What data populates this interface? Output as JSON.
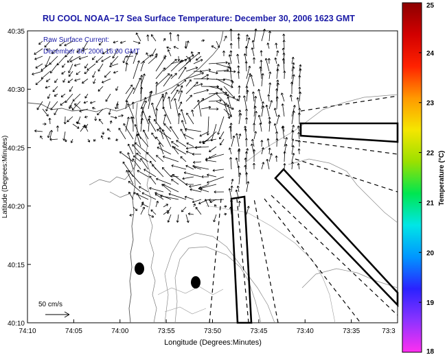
{
  "title": "RU COOL  NOAA−17  Sea Surface Temperature:  December 30, 2006 1623 GMT",
  "overlay": {
    "line1": "Raw Surface Current:",
    "line2": "December 30, 2006 16:00 GMT"
  },
  "scale_arrow_label": "50 cm/s",
  "axes": {
    "xlabel": "Longitude (Degrees:Minutes)",
    "ylabel": "Latitude (Degrees:Minutes)",
    "xticks": [
      "74:10",
      "74:05",
      "74:00",
      "73:55",
      "73:50",
      "73:45",
      "73:40",
      "73:35",
      "73:3"
    ],
    "yticks": [
      "40:35",
      "40:30",
      "40:25",
      "40:20",
      "40:15",
      "40:10"
    ]
  },
  "colorbar": {
    "label": "Temperature (°C)",
    "ticks": [
      "25",
      "24",
      "23",
      "22",
      "21",
      "20",
      "19",
      "18"
    ],
    "min": 18,
    "max": 25,
    "colors": [
      "#ff2ff0",
      "#8c33ff",
      "#2a22ff",
      "#0096ff",
      "#00e6e6",
      "#00e650",
      "#9be000",
      "#f5e600",
      "#ff9900",
      "#ff2200",
      "#d20000",
      "#8c0000"
    ]
  }
}
